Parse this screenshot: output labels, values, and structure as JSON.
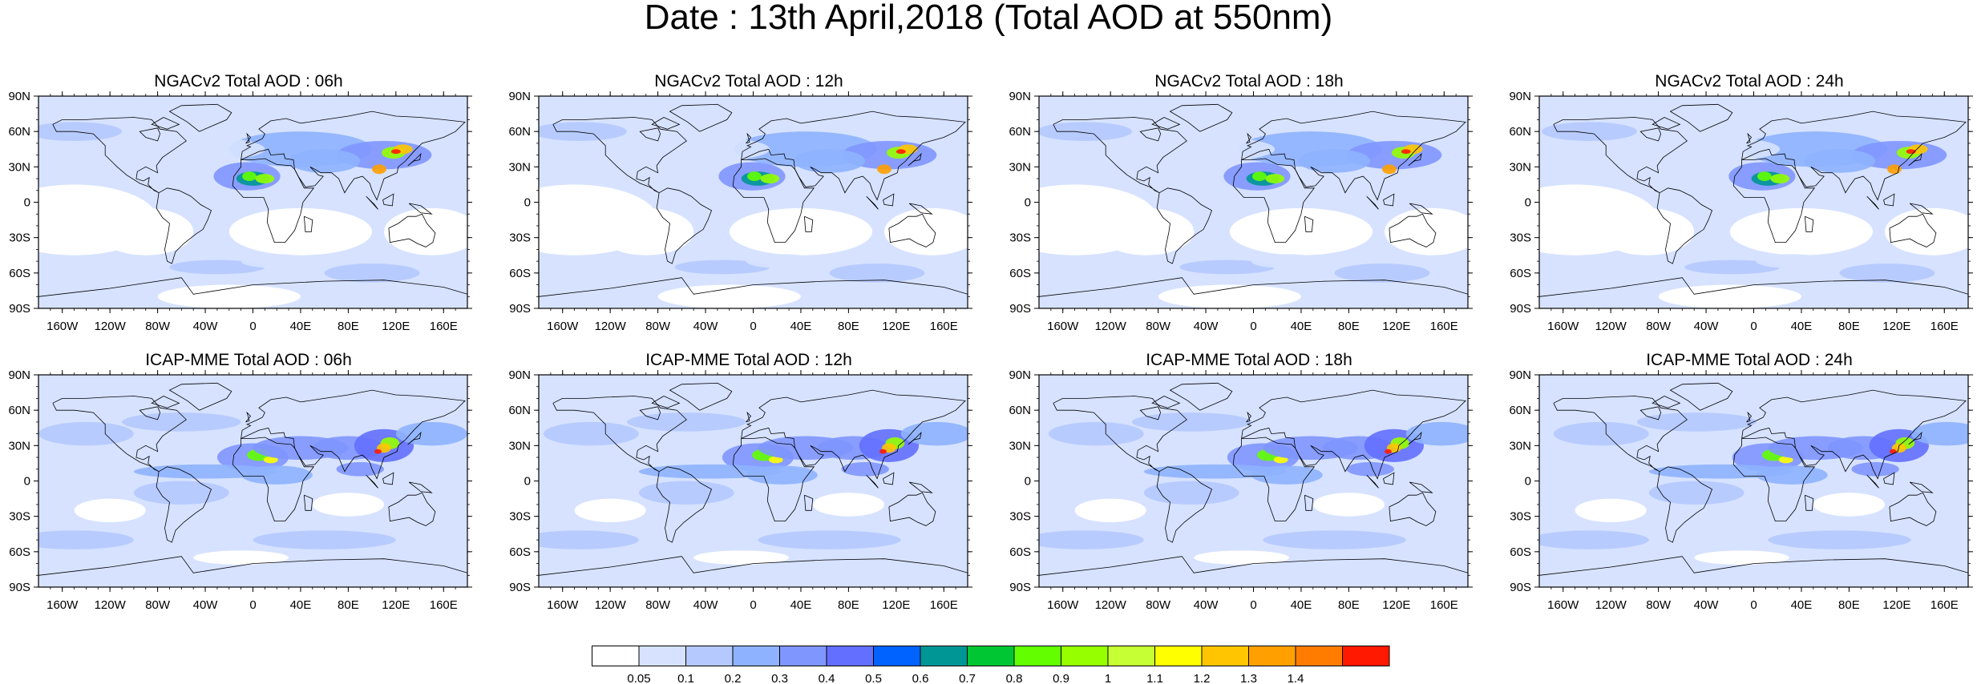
{
  "title": "Date : 13th April,2018 (Total AOD at 550nm)",
  "map_axes": {
    "lat_ticks": [
      "90N",
      "60N",
      "30N",
      "0",
      "30S",
      "60S",
      "90S"
    ],
    "lon_ticks": [
      "160W",
      "120W",
      "80W",
      "40W",
      "0",
      "40E",
      "80E",
      "120E",
      "160E"
    ]
  },
  "panels": [
    {
      "title": "NGACv2 Total AOD : 06h",
      "model": "NGACv2",
      "hour": "06h"
    },
    {
      "title": "NGACv2 Total AOD : 12h",
      "model": "NGACv2",
      "hour": "12h"
    },
    {
      "title": "NGACv2 Total AOD : 18h",
      "model": "NGACv2",
      "hour": "18h"
    },
    {
      "title": "NGACv2 Total AOD : 24h",
      "model": "NGACv2",
      "hour": "24h"
    },
    {
      "title": "ICAP-MME Total AOD : 06h",
      "model": "ICAP-MME",
      "hour": "06h"
    },
    {
      "title": "ICAP-MME Total AOD : 12h",
      "model": "ICAP-MME",
      "hour": "12h"
    },
    {
      "title": "ICAP-MME Total AOD : 18h",
      "model": "ICAP-MME",
      "hour": "18h"
    },
    {
      "title": "ICAP-MME Total AOD : 24h",
      "model": "ICAP-MME",
      "hour": "24h"
    }
  ],
  "colorbar": {
    "labels": [
      "0.05",
      "0.1",
      "0.2",
      "0.3",
      "0.4",
      "0.5",
      "0.6",
      "0.7",
      "0.8",
      "0.9",
      "1",
      "1.1",
      "1.2",
      "1.3",
      "1.4"
    ],
    "colors": [
      "#ffffff",
      "#d6e2ff",
      "#b5c9ff",
      "#8eb2ff",
      "#7f96ff",
      "#6370ff",
      "#0063ff",
      "#009696",
      "#00c633",
      "#63ff00",
      "#96ff00",
      "#c6ff33",
      "#ffff00",
      "#ffc600",
      "#ffa000",
      "#ff7c00",
      "#ff1900"
    ]
  }
}
